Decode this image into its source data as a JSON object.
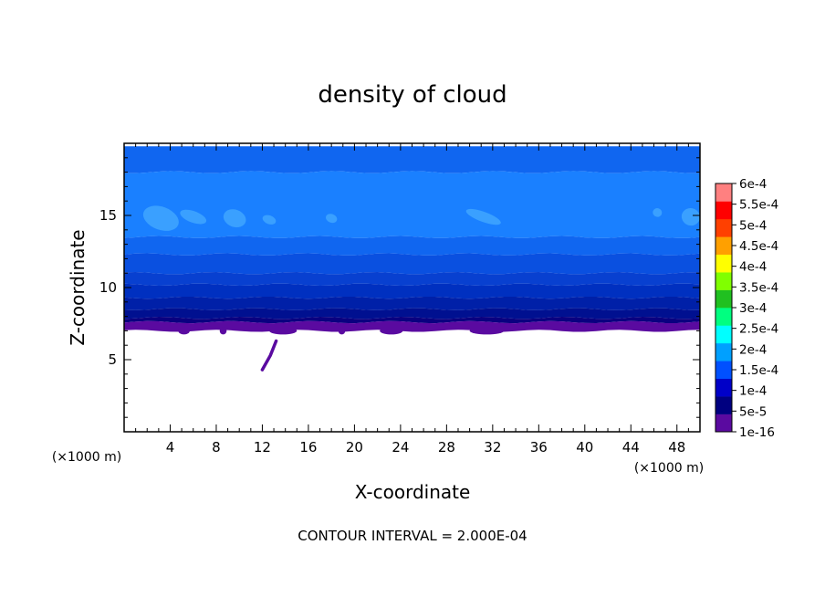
{
  "chart_data": {
    "type": "heatmap",
    "title": "density of cloud",
    "xlabel": "X-coordinate",
    "ylabel": "Z-coordinate",
    "x_unit_left": "(×1000 m)",
    "x_unit_right": "(×1000 m)",
    "footer": "CONTOUR INTERVAL = 2.000E-04",
    "xlim": [
      0,
      50
    ],
    "ylim": [
      0,
      20
    ],
    "x_ticks": [
      4,
      8,
      12,
      16,
      20,
      24,
      28,
      32,
      36,
      40,
      44,
      48
    ],
    "y_ticks": [
      5,
      10,
      15
    ],
    "colorbar": {
      "labels": [
        "1e-16",
        "5e-5",
        "1e-4",
        "1.5e-4",
        "2e-4",
        "2.5e-4",
        "3e-4",
        "3.5e-4",
        "4e-4",
        "4.5e-4",
        "5e-4",
        "5.5e-4",
        "6e-4"
      ],
      "colors": [
        "#5a0aa0",
        "#000080",
        "#0000c8",
        "#0050ff",
        "#00a0ff",
        "#00ffff",
        "#00ff80",
        "#20c020",
        "#80ff00",
        "#ffff00",
        "#ffa000",
        "#ff4000",
        "#ff0000",
        "#ff8080"
      ]
    },
    "layers": [
      {
        "z0": 18.0,
        "z1": 19.8,
        "color": "#1066f0"
      },
      {
        "z0": 13.5,
        "z1": 18.0,
        "color": "#1a80ff"
      },
      {
        "z0": 12.3,
        "z1": 13.5,
        "color": "#1066f0"
      },
      {
        "z0": 11.0,
        "z1": 12.3,
        "color": "#0a50e0"
      },
      {
        "z0": 10.2,
        "z1": 11.0,
        "color": "#0840d0"
      },
      {
        "z0": 9.3,
        "z1": 10.2,
        "color": "#0030c0"
      },
      {
        "z0": 8.5,
        "z1": 9.3,
        "color": "#0020a8"
      },
      {
        "z0": 7.9,
        "z1": 8.5,
        "color": "#001090"
      },
      {
        "z0": 7.6,
        "z1": 7.9,
        "color": "#0a0080"
      },
      {
        "z0": 7.0,
        "z1": 7.6,
        "color": "#5a0aa0"
      }
    ],
    "patches": [
      {
        "x": 3.2,
        "z": 14.8,
        "rx": 1.6,
        "rz": 0.8,
        "color": "#3aa0ff"
      },
      {
        "x": 6.0,
        "z": 14.9,
        "rx": 1.2,
        "rz": 0.4,
        "color": "#3aa0ff"
      },
      {
        "x": 9.6,
        "z": 14.8,
        "rx": 1.0,
        "rz": 0.6,
        "color": "#3aa0ff"
      },
      {
        "x": 12.6,
        "z": 14.7,
        "rx": 0.6,
        "rz": 0.3,
        "color": "#3aa0ff"
      },
      {
        "x": 18.0,
        "z": 14.8,
        "rx": 0.5,
        "rz": 0.3,
        "color": "#3aa0ff"
      },
      {
        "x": 31.2,
        "z": 14.9,
        "rx": 1.6,
        "rz": 0.35,
        "color": "#3aa0ff"
      },
      {
        "x": 46.3,
        "z": 15.2,
        "rx": 0.4,
        "rz": 0.3,
        "color": "#3aa0ff"
      },
      {
        "x": 49.2,
        "z": 14.9,
        "rx": 0.8,
        "rz": 0.6,
        "color": "#3aa0ff"
      }
    ],
    "streak": {
      "points": [
        [
          12.0,
          4.3
        ],
        [
          12.7,
          5.3
        ],
        [
          13.2,
          6.3
        ]
      ],
      "color": "#5a0aa0"
    }
  }
}
